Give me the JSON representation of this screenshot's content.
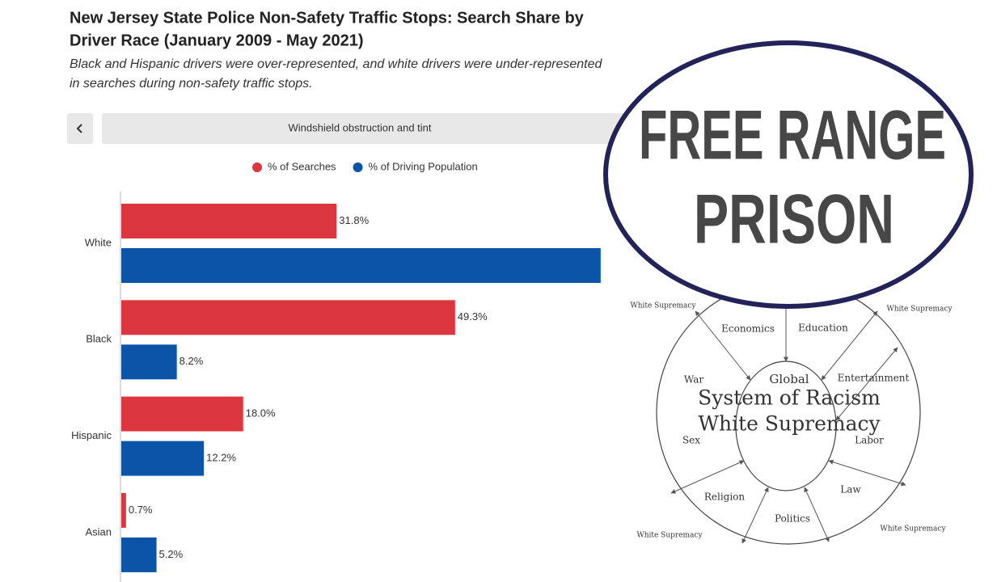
{
  "chart_data": {
    "type": "bar",
    "orientation": "horizontal",
    "title": [
      "New Jersey State Police Non-Safety Traffic Stops: Search Share by",
      "Driver Race (January 2009 - May 2021)"
    ],
    "subtitle": [
      "Black and Hispanic drivers were over-represented, and white drivers were under-represented",
      "in searches during non-safety traffic stops."
    ],
    "filter_label": "Windshield obstruction and tint",
    "categories": [
      "White",
      "Black",
      "Hispanic",
      "Asian"
    ],
    "xlim": [
      0,
      75
    ],
    "series": [
      {
        "name": "% of Searches",
        "color": "#dc3741",
        "values": [
          31.8,
          49.3,
          18.0,
          0.7
        ],
        "value_labels": [
          "31.8%",
          "49.3%",
          "18.0%",
          "0.7%"
        ]
      },
      {
        "name": "% of Driving Population",
        "color": "#0b54a8",
        "values": [
          70.8,
          8.2,
          12.2,
          5.2
        ],
        "value_labels": [
          null,
          "8.2%",
          "12.2%",
          "5.2%"
        ]
      }
    ]
  },
  "overlay": {
    "badge": [
      "FREE RANGE",
      "PRISON"
    ],
    "diagram": {
      "center": [
        "Global",
        "System of Racism",
        "White Supremacy"
      ],
      "segments": [
        "Economics",
        "Education",
        "Entertainment",
        "Labor",
        "Law",
        "Politics",
        "Religion",
        "Sex",
        "War"
      ],
      "corners": [
        "White Supremacy",
        "White Supremacy",
        "White Supremacy",
        "White Supremacy"
      ]
    }
  }
}
